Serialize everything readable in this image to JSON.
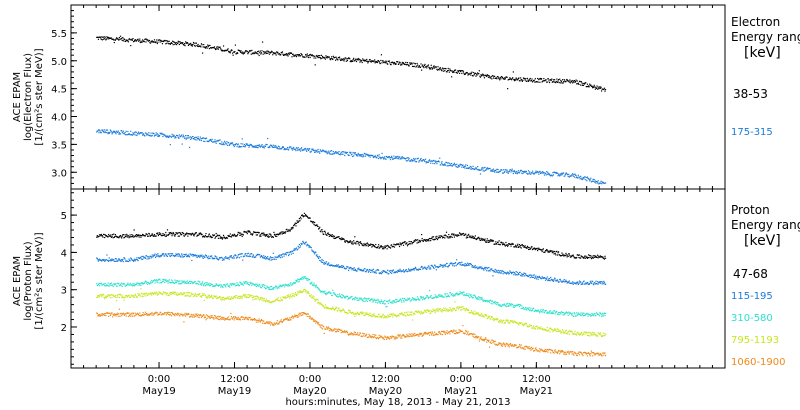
{
  "chart_data": [
    {
      "type": "scatter",
      "ylabel_lines": [
        "ACE EPAM",
        "log(Electron Flux)",
        "[1/(cm²s ster MeV)]"
      ],
      "ylim": [
        2.7,
        6.0
      ],
      "yticks": [
        3.0,
        3.5,
        4.0,
        4.5,
        5.0,
        5.5
      ],
      "ytick_labels": [
        "3.0",
        "3.5",
        "4.0",
        "4.5",
        "5.0",
        "5.5"
      ],
      "legend": {
        "title_lines": [
          "Electron",
          "Energy range",
          "[keV]"
        ],
        "placement": "right"
      },
      "series": [
        {
          "name": "38-53",
          "color": "#000000",
          "x": [
            -10,
            0,
            6,
            12,
            18,
            24,
            30,
            36,
            42,
            48,
            54,
            60,
            66,
            71
          ],
          "values": [
            5.42,
            5.35,
            5.3,
            5.17,
            5.15,
            5.1,
            5.03,
            4.98,
            4.92,
            4.8,
            4.7,
            4.66,
            4.64,
            4.48
          ]
        },
        {
          "name": "175-315",
          "color": "#1a7bd9",
          "x": [
            -10,
            0,
            6,
            12,
            18,
            24,
            30,
            36,
            42,
            48,
            54,
            60,
            66,
            71
          ],
          "values": [
            3.75,
            3.68,
            3.62,
            3.5,
            3.47,
            3.4,
            3.34,
            3.28,
            3.22,
            3.12,
            3.03,
            3.0,
            2.95,
            2.8
          ]
        }
      ]
    },
    {
      "type": "scatter",
      "ylabel_lines": [
        "ACE EPAM",
        "log(Proton Flux)",
        "[1/(cm²s ster MeV)]"
      ],
      "ylim": [
        0.9,
        5.7
      ],
      "yticks": [
        2,
        3,
        4,
        5
      ],
      "ytick_labels": [
        "2",
        "3",
        "4",
        "5"
      ],
      "legend": {
        "title_lines": [
          "Proton",
          "Energy range",
          "[keV]"
        ],
        "placement": "right"
      },
      "series": [
        {
          "name": "47-68",
          "color": "#000000",
          "x": [
            -10,
            -4,
            0,
            6,
            10,
            14,
            18,
            21,
            23,
            26,
            30,
            36,
            42,
            48,
            54,
            57,
            60,
            66,
            71
          ],
          "values": [
            4.45,
            4.45,
            4.5,
            4.5,
            4.42,
            4.55,
            4.45,
            4.65,
            5.05,
            4.55,
            4.3,
            4.15,
            4.35,
            4.5,
            4.25,
            4.2,
            4.1,
            3.9,
            3.9
          ]
        },
        {
          "name": "115-195",
          "color": "#1a7bd9",
          "x": [
            -10,
            -4,
            0,
            6,
            10,
            14,
            18,
            21,
            23,
            26,
            30,
            36,
            42,
            48,
            54,
            57,
            60,
            66,
            71
          ],
          "values": [
            3.82,
            3.82,
            3.95,
            3.92,
            3.85,
            3.96,
            3.85,
            4.0,
            4.3,
            3.75,
            3.58,
            3.48,
            3.6,
            3.72,
            3.5,
            3.45,
            3.35,
            3.2,
            3.2
          ]
        },
        {
          "name": "310-580",
          "color": "#2ce0cc",
          "x": [
            -10,
            -4,
            0,
            6,
            10,
            14,
            18,
            21,
            23,
            26,
            30,
            36,
            42,
            48,
            54,
            57,
            60,
            66,
            71
          ],
          "values": [
            3.15,
            3.15,
            3.25,
            3.2,
            3.1,
            3.2,
            3.05,
            3.18,
            3.35,
            2.95,
            2.8,
            2.68,
            2.8,
            2.92,
            2.62,
            2.58,
            2.45,
            2.35,
            2.35
          ]
        },
        {
          "name": "795-1193",
          "color": "#c6e621",
          "x": [
            -10,
            -4,
            0,
            6,
            10,
            14,
            18,
            21,
            23,
            26,
            30,
            36,
            42,
            48,
            54,
            57,
            60,
            66,
            71
          ],
          "values": [
            2.85,
            2.85,
            2.92,
            2.88,
            2.78,
            2.85,
            2.7,
            2.85,
            3.0,
            2.58,
            2.42,
            2.3,
            2.42,
            2.52,
            2.18,
            2.12,
            2.0,
            1.85,
            1.8
          ]
        },
        {
          "name": "1060-1900",
          "color": "#ee8a1a",
          "x": [
            -10,
            -4,
            0,
            6,
            10,
            14,
            18,
            21,
            23,
            26,
            30,
            36,
            42,
            48,
            54,
            57,
            60,
            66,
            71
          ],
          "values": [
            2.35,
            2.35,
            2.38,
            2.32,
            2.25,
            2.25,
            2.1,
            2.25,
            2.4,
            2.0,
            1.85,
            1.72,
            1.82,
            1.9,
            1.55,
            1.5,
            1.4,
            1.3,
            1.28
          ]
        }
      ]
    }
  ],
  "time_axis": {
    "xlim": [
      -14,
      90
    ],
    "ticks": [
      {
        "x": 0,
        "time": "0:00",
        "date": "May19"
      },
      {
        "x": 12,
        "time": "12:00",
        "date": "May19"
      },
      {
        "x": 24,
        "time": "0:00",
        "date": "May20"
      },
      {
        "x": 36,
        "time": "12:00",
        "date": "May20"
      },
      {
        "x": 48,
        "time": "0:00",
        "date": "May21"
      },
      {
        "x": 60,
        "time": "12:00",
        "date": "May21"
      }
    ],
    "xlabel": "hours:minutes, May 18, 2013 - May 21, 2013"
  }
}
